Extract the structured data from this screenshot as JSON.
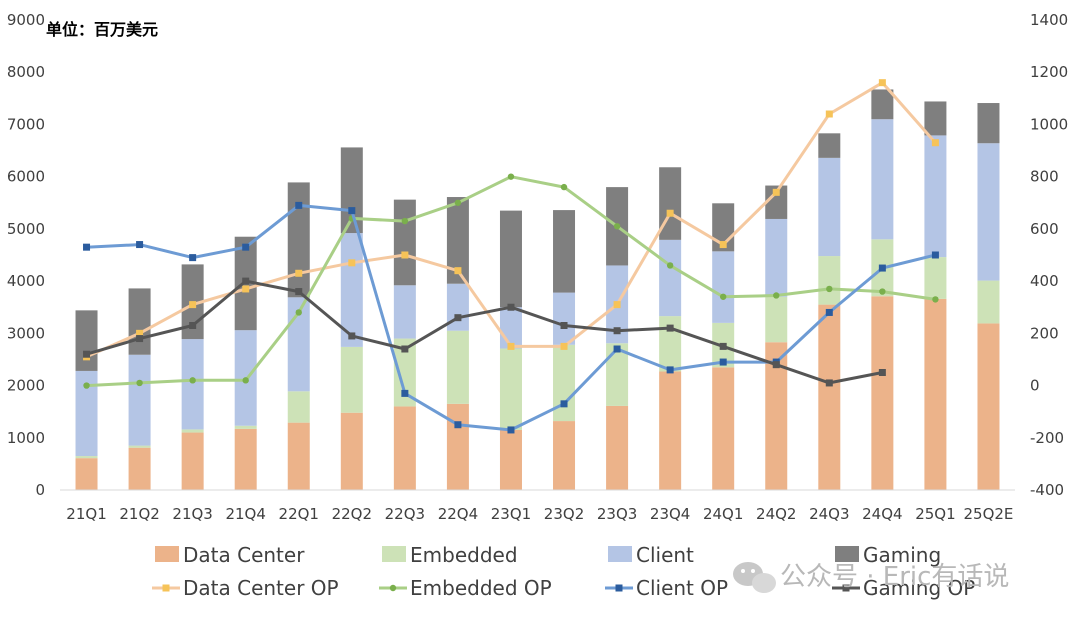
{
  "chart_data": {
    "type": "bar",
    "stacked": true,
    "unit_label": "单位：百万美元",
    "categories": [
      "21Q1",
      "21Q2",
      "21Q3",
      "21Q4",
      "22Q1",
      "22Q2",
      "22Q3",
      "22Q4",
      "23Q1",
      "23Q2",
      "23Q3",
      "23Q4",
      "24Q1",
      "24Q2",
      "24Q3",
      "24Q4",
      "25Q1",
      "25Q2E"
    ],
    "y_left": {
      "min": 0,
      "max": 9000,
      "ticks": [
        "0",
        "1000",
        "2000",
        "3000",
        "4000",
        "5000",
        "6000",
        "7000",
        "8000",
        "9000"
      ]
    },
    "y_right": {
      "min": -400,
      "max": 1400,
      "ticks": [
        "-400",
        "-200",
        "0",
        "200",
        "400",
        "600",
        "800",
        "1000",
        "1200",
        "1400"
      ]
    },
    "bar_series": [
      {
        "name": "Data Center",
        "color": "#ecb38a",
        "values": [
          610,
          810,
          1100,
          1170,
          1290,
          1480,
          1600,
          1650,
          1150,
          1320,
          1610,
          2270,
          2350,
          2830,
          3550,
          3710,
          3660,
          3190
        ]
      },
      {
        "name": "Embedded",
        "color": "#cde2b7",
        "values": [
          40,
          40,
          60,
          60,
          600,
          1260,
          1300,
          1400,
          1560,
          1460,
          1200,
          1060,
          850,
          870,
          930,
          1090,
          800,
          820
        ]
      },
      {
        "name": "Client",
        "color": "#b4c5e5",
        "values": [
          1630,
          1740,
          1730,
          1830,
          1800,
          2180,
          1020,
          900,
          790,
          1000,
          1490,
          1460,
          1370,
          1490,
          1880,
          2300,
          2330,
          2630
        ]
      },
      {
        "name": "Gaming",
        "color": "#7f7f7f",
        "values": [
          1160,
          1270,
          1430,
          1790,
          2200,
          1640,
          1640,
          1660,
          1850,
          1580,
          1500,
          1390,
          920,
          640,
          470,
          570,
          650,
          770
        ]
      }
    ],
    "line_series": [
      {
        "name": "Data Center OP",
        "color": "#f5c9a0",
        "marker_color": "#f6c358",
        "values": [
          110,
          200,
          310,
          370,
          430,
          470,
          500,
          440,
          150,
          150,
          310,
          660,
          540,
          740,
          1040,
          1160,
          930,
          null
        ]
      },
      {
        "name": "Embedded OP",
        "color": "#a9cf86",
        "marker_color": "#7aaf4c",
        "values": [
          0,
          10,
          20,
          20,
          280,
          640,
          630,
          700,
          800,
          760,
          610,
          460,
          340,
          345,
          370,
          360,
          330,
          null
        ]
      },
      {
        "name": "Client OP",
        "color": "#6d9bd4",
        "marker_color": "#2b5c9e",
        "values": [
          530,
          540,
          490,
          530,
          690,
          670,
          -30,
          -150,
          -170,
          -70,
          140,
          60,
          90,
          90,
          280,
          450,
          500,
          null
        ]
      },
      {
        "name": "Gaming OP",
        "color": "#555555",
        "marker_color": "#555555",
        "values": [
          120,
          180,
          230,
          400,
          360,
          190,
          140,
          260,
          300,
          230,
          210,
          220,
          150,
          80,
          10,
          50,
          null,
          null
        ]
      }
    ],
    "legend": {
      "row1": [
        "Data Center",
        "Embedded",
        "Client",
        "Gaming"
      ],
      "row2": [
        "Data Center OP",
        "Embedded OP",
        "Client OP",
        "Gaming OP"
      ]
    },
    "watermark": "公众号 · Eric有话说"
  }
}
